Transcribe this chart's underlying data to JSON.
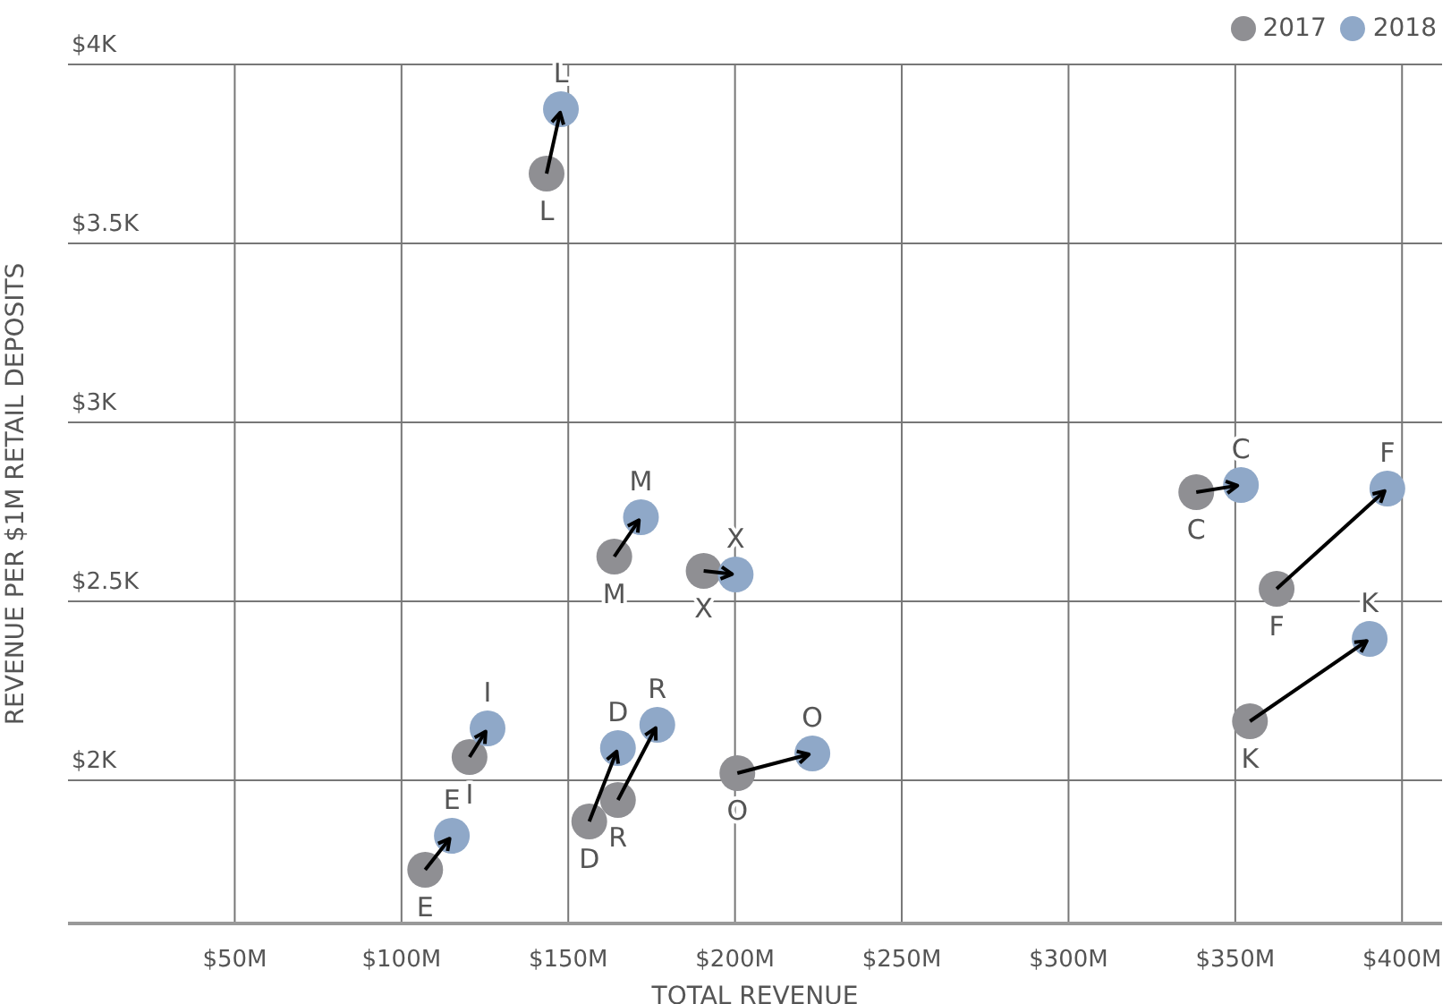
{
  "chart_data": {
    "type": "scatter",
    "xlabel": "TOTAL REVENUE",
    "ylabel": "REVENUE PER $1M RETAIL DEPOSITS",
    "xlim": [
      0,
      412
    ],
    "xticks": [
      {
        "value": 50,
        "label": "$50M"
      },
      {
        "value": 100,
        "label": "$100M"
      },
      {
        "value": 150,
        "label": "$150M"
      },
      {
        "value": 200,
        "label": "$200M"
      },
      {
        "value": 250,
        "label": "$250M"
      },
      {
        "value": 300,
        "label": "$300M"
      },
      {
        "value": 350,
        "label": "$350M"
      },
      {
        "value": 400,
        "label": "$400M"
      }
    ],
    "ylim": [
      1600,
      4000
    ],
    "yticks": [
      {
        "value": 2000,
        "label": "$2K"
      },
      {
        "value": 2500,
        "label": "$2.5K"
      },
      {
        "value": 3000,
        "label": "$3K"
      },
      {
        "value": 3500,
        "label": "$3.5K"
      },
      {
        "value": 4000,
        "label": "$4K"
      }
    ],
    "grid": true,
    "legend": "top right",
    "marker": "circle",
    "series": [
      {
        "name": "2017",
        "color": "#8f8f93",
        "x": [
          143.5,
          163.8,
          190.6,
          338.3,
          362.4,
          354.4,
          120.4,
          156.3,
          164.9,
          200.7,
          107.1
        ],
        "values": [
          3695,
          2625,
          2585,
          2805,
          2535,
          2165,
          2065,
          1885,
          1945,
          2020,
          1750
        ]
      },
      {
        "name": "2018",
        "color": "#8fa8c8",
        "x": [
          147.8,
          171.8,
          200.2,
          351.7,
          395.6,
          390.3,
          125.8,
          164.9,
          176.7,
          223.2,
          115.1
        ],
        "values": [
          3875,
          2735,
          2575,
          2825,
          2815,
          2395,
          2145,
          2090,
          2155,
          2075,
          1845
        ]
      }
    ],
    "annotations": [
      {
        "text": "L",
        "x": 143.5,
        "y": 3695
      },
      {
        "text": "M",
        "x": 163.8,
        "y": 2625
      },
      {
        "text": "X",
        "x": 190.6,
        "y": 2585
      },
      {
        "text": "C",
        "x": 338.3,
        "y": 2805
      },
      {
        "text": "F",
        "x": 362.4,
        "y": 2535
      },
      {
        "text": "K",
        "x": 354.4,
        "y": 2165
      },
      {
        "text": "I",
        "x": 120.4,
        "y": 2065
      },
      {
        "text": "D",
        "x": 156.3,
        "y": 1885
      },
      {
        "text": "R",
        "x": 164.9,
        "y": 1945
      },
      {
        "text": "O",
        "x": 200.7,
        "y": 2020
      },
      {
        "text": "E",
        "x": 107.1,
        "y": 1750
      },
      {
        "text": "L",
        "x": 147.8,
        "y": 3875
      },
      {
        "text": "M",
        "x": 171.8,
        "y": 2735
      },
      {
        "text": "X",
        "x": 200.2,
        "y": 2575
      },
      {
        "text": "C",
        "x": 351.7,
        "y": 2825
      },
      {
        "text": "F",
        "x": 395.6,
        "y": 2815
      },
      {
        "text": "K",
        "x": 390.3,
        "y": 2395
      },
      {
        "text": "I",
        "x": 125.8,
        "y": 2145
      },
      {
        "text": "D",
        "x": 164.9,
        "y": 2090
      },
      {
        "text": "R",
        "x": 176.7,
        "y": 2155
      },
      {
        "text": "O",
        "x": 223.2,
        "y": 2075
      },
      {
        "text": "E",
        "x": 115.1,
        "y": 1845
      }
    ]
  }
}
